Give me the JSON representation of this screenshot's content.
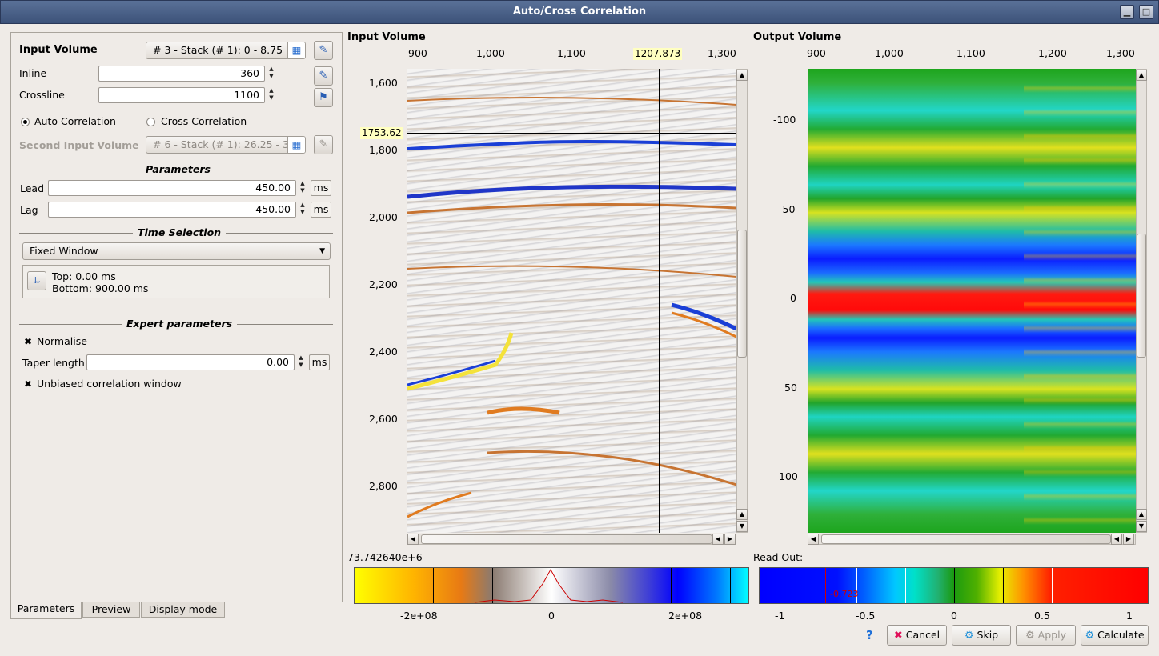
{
  "window": {
    "title": "Auto/Cross Correlation",
    "min_label": "▁",
    "max_label": "□"
  },
  "params": {
    "input_volume_label": "Input Volume",
    "input_volume_value": "# 3 - Stack (# 1): 0 - 8.75",
    "inline_label": "Inline",
    "inline_value": "360",
    "crossline_label": "Crossline",
    "crossline_value": "1100",
    "auto_label": "Auto Correlation",
    "cross_label": "Cross Correlation",
    "second_input_label": "Second Input Volume",
    "second_input_value": "# 6 - Stack (# 1): 26.25 - 3",
    "parameters_title": "Parameters",
    "lead_label": "Lead",
    "lead_value": "450.00",
    "lag_label": "Lag",
    "lag_value": "450.00",
    "unit_ms": "ms",
    "time_selection_title": "Time Selection",
    "time_selection_value": "Fixed Window",
    "top_text": "Top: 0.00 ms",
    "bottom_text": "Bottom: 900.00 ms",
    "expert_title": "Expert parameters",
    "normalise_label": "Normalise",
    "taper_label": "Taper length",
    "taper_value": "0.00",
    "unbiased_label": "Unbiased correlation window"
  },
  "tabs": [
    "Parameters",
    "Preview",
    "Display mode"
  ],
  "input_viewer": {
    "title": "Input Volume",
    "x_ticks": [
      "900",
      "1,000",
      "1,100",
      "1,200",
      "1,300"
    ],
    "y_ticks": [
      "1,600",
      "1,800",
      "2,000",
      "2,200",
      "2,400",
      "2,600",
      "2,800"
    ],
    "cursor_x": "1207.873",
    "cursor_y": "1753.62",
    "value_readout": "73.742640e+6",
    "colorbar_ticks": [
      "-2e+08",
      "0",
      "2e+08"
    ]
  },
  "output_viewer": {
    "title": "Output Volume",
    "x_ticks": [
      "900",
      "1,000",
      "1,100",
      "1,200",
      "1,300"
    ],
    "y_ticks": [
      "-100",
      "-50",
      "0",
      "50",
      "100"
    ],
    "readout_label": "Read Out:",
    "colorbar_marker": "-0.723",
    "colorbar_ticks": [
      "-1",
      "-0.5",
      "0",
      "0.5",
      "1"
    ]
  },
  "buttons": {
    "help": "?",
    "cancel": "Cancel",
    "skip": "Skip",
    "apply": "Apply",
    "calculate": "Calculate"
  }
}
